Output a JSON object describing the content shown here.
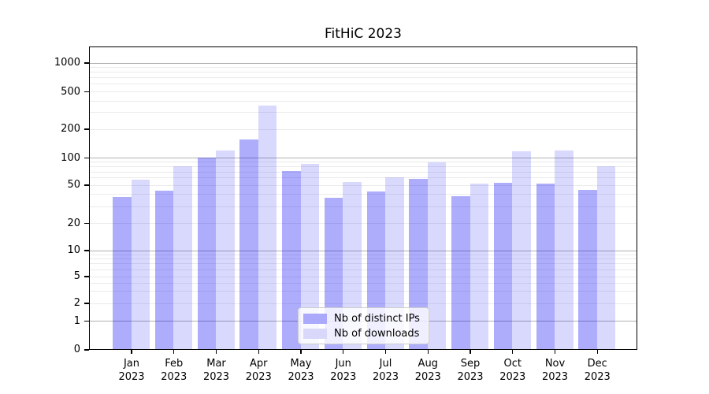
{
  "chart_data": {
    "type": "bar",
    "title": "FitHiC 2023",
    "categories": [
      "Jan",
      "Feb",
      "Mar",
      "Apr",
      "May",
      "Jun",
      "Jul",
      "Aug",
      "Sep",
      "Oct",
      "Nov",
      "Dec"
    ],
    "category_year_line": "2023",
    "series": [
      {
        "name": "Nb of distinct IPs",
        "color": "rgba(10,10,245,0.335)",
        "solid_color": "#aaa9fb",
        "values": [
          37,
          43,
          100,
          152,
          70,
          36,
          42,
          57,
          38,
          52,
          51,
          44
        ]
      },
      {
        "name": "Nb of downloads",
        "color": "rgba(10,10,245,0.155)",
        "solid_color": "#d9d8fb",
        "values": [
          56,
          80,
          118,
          350,
          85,
          53,
          60,
          88,
          51,
          115,
          117,
          80
        ]
      }
    ],
    "xlabel": "",
    "ylabel": "",
    "yscale": "symlog",
    "ylim": [
      0,
      1500
    ],
    "yticks": [
      0,
      1,
      2,
      5,
      10,
      20,
      50,
      100,
      200,
      500,
      1000
    ],
    "major_gridlines": [
      1,
      10,
      100,
      1000
    ],
    "minor_gridlines": [
      2,
      3,
      4,
      5,
      6,
      7,
      8,
      9,
      20,
      30,
      40,
      50,
      60,
      70,
      80,
      90,
      200,
      300,
      400,
      500,
      600,
      700,
      800,
      900
    ],
    "grid": true,
    "legend_position": "lower-center"
  },
  "colors": {
    "background": "#ffffff",
    "axis": "#000000",
    "grid_major": "#b0b0b0",
    "grid_minor": "#ebebeb",
    "legend_border": "#cccccc",
    "series_ips": "#aaa9fb",
    "series_downloads": "#d9d8fb"
  }
}
